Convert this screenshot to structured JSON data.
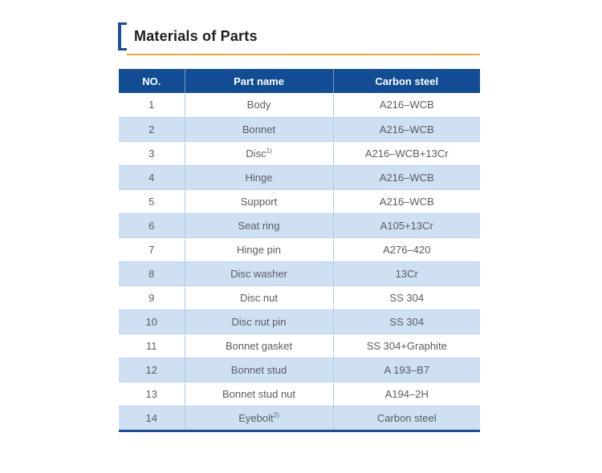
{
  "title": {
    "text": "Materials of Parts",
    "accent_color": "#1b4f9c",
    "underline_color": "#f2a43c"
  },
  "table": {
    "header_bg": "#114c94",
    "alt_row_bg": "#cfe0f2",
    "headers": [
      "NO.",
      "Part name",
      "Carbon steel"
    ],
    "rows": [
      {
        "no": "1",
        "name": "Body",
        "sup": "",
        "material": "A216–WCB"
      },
      {
        "no": "2",
        "name": "Bonnet",
        "sup": "",
        "material": "A216–WCB"
      },
      {
        "no": "3",
        "name": "Disc",
        "sup": "1)",
        "material": "A216–WCB+13Cr"
      },
      {
        "no": "4",
        "name": "Hinge",
        "sup": "",
        "material": "A216–WCB"
      },
      {
        "no": "5",
        "name": "Support",
        "sup": "",
        "material": "A216–WCB"
      },
      {
        "no": "6",
        "name": "Seat ring",
        "sup": "",
        "material": "A105+13Cr"
      },
      {
        "no": "7",
        "name": "Hinge pin",
        "sup": "",
        "material": "A276–420"
      },
      {
        "no": "8",
        "name": "Disc washer",
        "sup": "",
        "material": "13Cr"
      },
      {
        "no": "9",
        "name": "Disc nut",
        "sup": "",
        "material": "SS 304"
      },
      {
        "no": "10",
        "name": "Disc nut pin",
        "sup": "",
        "material": "SS 304"
      },
      {
        "no": "11",
        "name": "Bonnet gasket",
        "sup": "",
        "material": "SS 304+Graphite"
      },
      {
        "no": "12",
        "name": "Bonnet stud",
        "sup": "",
        "material": "A 193–B7"
      },
      {
        "no": "13",
        "name": "Bonnet stud nut",
        "sup": "",
        "material": "A194–2H"
      },
      {
        "no": "14",
        "name": "Eyebolt",
        "sup": "2)",
        "material": "Carbon steel"
      }
    ]
  }
}
